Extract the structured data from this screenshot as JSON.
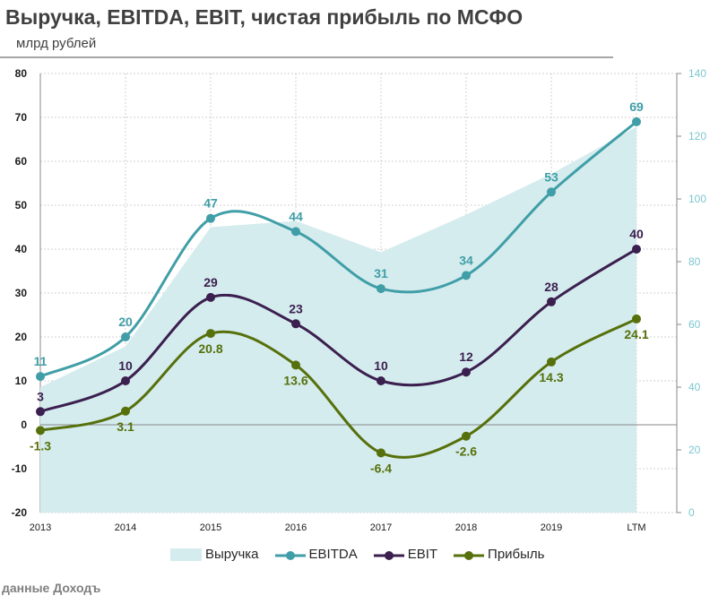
{
  "title": "Выручка, EBITDA, EBIT, чистая прибыль по МСФО",
  "subtitle": "млрд рублей",
  "source": "данные Доходъ",
  "chart_data": {
    "type": "line",
    "categories": [
      "2013",
      "2014",
      "2015",
      "2016",
      "2017",
      "2018",
      "2019",
      "LTM"
    ],
    "y_left": {
      "range": [
        -20,
        80
      ],
      "ticks": [
        "-20",
        "-10",
        "0",
        "10",
        "20",
        "30",
        "40",
        "50",
        "60",
        "70",
        "80"
      ]
    },
    "y_right": {
      "range": [
        0,
        140
      ],
      "ticks": [
        "0",
        "20",
        "40",
        "60",
        "80",
        "100",
        "120",
        "140"
      ]
    },
    "grid": true,
    "legend_placement": "bottom",
    "series": [
      {
        "name": "Выручка",
        "type": "area",
        "axis": "right",
        "color": "#d5ecee",
        "values": [
          40,
          53,
          91,
          93,
          83,
          95,
          108,
          123
        ]
      },
      {
        "name": "EBITDA",
        "type": "line",
        "axis": "left",
        "color": "#3f9ea7",
        "values": [
          11,
          20,
          47,
          44,
          31,
          34,
          53,
          69
        ],
        "labels": [
          "11",
          "20",
          "47",
          "44",
          "31",
          "34",
          "53",
          "69"
        ]
      },
      {
        "name": "EBIT",
        "type": "line",
        "axis": "left",
        "color": "#3b1f4f",
        "values": [
          3,
          10,
          29,
          23,
          10,
          12,
          28,
          40
        ],
        "labels": [
          "3",
          "10",
          "29",
          "23",
          "10",
          "12",
          "28",
          "40"
        ]
      },
      {
        "name": "Прибыль",
        "type": "line",
        "axis": "left",
        "color": "#56700b",
        "values": [
          -1.3,
          3.1,
          20.8,
          13.6,
          -6.4,
          -2.6,
          14.3,
          24.1
        ],
        "labels": [
          "-1.3",
          "3.1",
          "20.8",
          "13.6",
          "-6.4",
          "-2.6",
          "14.3",
          "24.1"
        ]
      }
    ]
  }
}
